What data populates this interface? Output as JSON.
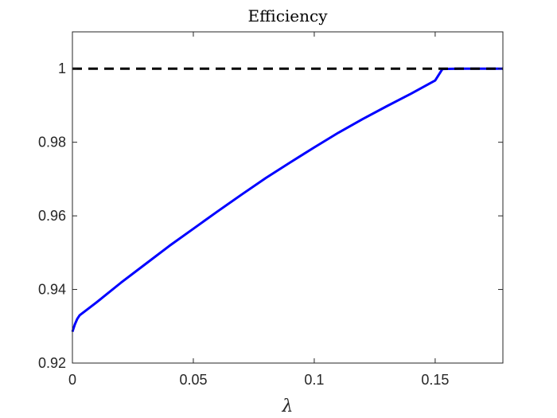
{
  "chart_data": {
    "type": "line",
    "title": "Efficiency",
    "xlabel": "λ",
    "ylabel": "",
    "xlim": [
      0,
      0.178
    ],
    "ylim": [
      0.92,
      1.01
    ],
    "xticks": [
      0,
      0.05,
      0.1,
      0.15
    ],
    "xtick_labels": [
      "0",
      "0.05",
      "0.1",
      "0.15"
    ],
    "yticks": [
      0.92,
      0.94,
      0.96,
      0.98,
      1.0
    ],
    "ytick_labels": [
      "0.92",
      "0.94",
      "0.96",
      "0.98",
      "1"
    ],
    "grid": false,
    "series": [
      {
        "color": "#0000ff",
        "style": "solid",
        "x": [
          0,
          0.001,
          0.002,
          0.003,
          0.005,
          0.01,
          0.02,
          0.03,
          0.04,
          0.05,
          0.06,
          0.07,
          0.08,
          0.09,
          0.1,
          0.11,
          0.12,
          0.13,
          0.14,
          0.15,
          0.153,
          0.16,
          0.17,
          0.178
        ],
        "y": [
          0.9285,
          0.9305,
          0.932,
          0.933,
          0.934,
          0.9365,
          0.9418,
          0.9468,
          0.9518,
          0.9565,
          0.9612,
          0.9658,
          0.9703,
          0.9745,
          0.9786,
          0.9826,
          0.9863,
          0.9898,
          0.9932,
          0.9968,
          0.9999,
          1.0,
          1.0,
          1.0
        ]
      },
      {
        "color": "#000000",
        "style": "dashed",
        "x": [
          0,
          0.178
        ],
        "y": [
          1.0,
          1.0
        ]
      }
    ]
  }
}
